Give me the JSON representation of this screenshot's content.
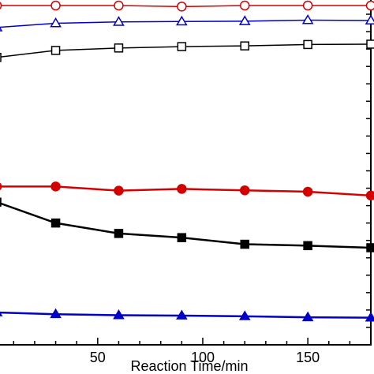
{
  "chart_data": {
    "type": "line",
    "xlabel": "Reaction Time/min",
    "ylabel": "",
    "title": "",
    "xlim": [
      2,
      180
    ],
    "ylim": [
      0,
      100
    ],
    "x_ticks": [
      50,
      100,
      150
    ],
    "x_minor_step": 10,
    "y_minor_step": 5,
    "grid": false,
    "series": [
      {
        "color": "#d40000",
        "marker": "circle",
        "filled": false,
        "x": [
          2,
          30,
          60,
          90,
          120,
          150,
          180
        ],
        "y": [
          97.5,
          97.5,
          97.5,
          97.2,
          97.5,
          97.5,
          97.5
        ]
      },
      {
        "color": "#0000c8",
        "marker": "triangle",
        "filled": false,
        "x": [
          2,
          30,
          60,
          90,
          120,
          150,
          180
        ],
        "y": [
          91.2,
          92.4,
          92.8,
          92.9,
          93.0,
          93.3,
          93.2
        ]
      },
      {
        "color": "#000000",
        "marker": "square",
        "filled": false,
        "x": [
          2,
          30,
          60,
          90,
          120,
          150,
          180
        ],
        "y": [
          82.6,
          84.6,
          85.3,
          85.7,
          85.9,
          86.3,
          86.4
        ]
      },
      {
        "color": "#d40000",
        "marker": "circle",
        "filled": true,
        "x": [
          2,
          30,
          60,
          90,
          120,
          150,
          180
        ],
        "y": [
          45.5,
          45.5,
          44.3,
          44.8,
          44.4,
          44.0,
          42.9
        ]
      },
      {
        "color": "#000000",
        "marker": "square",
        "filled": true,
        "x": [
          2,
          30,
          60,
          90,
          120,
          150,
          180
        ],
        "y": [
          41.0,
          35.0,
          32.0,
          30.8,
          28.9,
          28.5,
          27.9
        ]
      },
      {
        "color": "#0000c8",
        "marker": "triangle",
        "filled": true,
        "x": [
          2,
          30,
          60,
          90,
          120,
          150,
          180
        ],
        "y": [
          9.3,
          8.8,
          8.5,
          8.4,
          8.2,
          7.9,
          7.8
        ]
      }
    ]
  }
}
